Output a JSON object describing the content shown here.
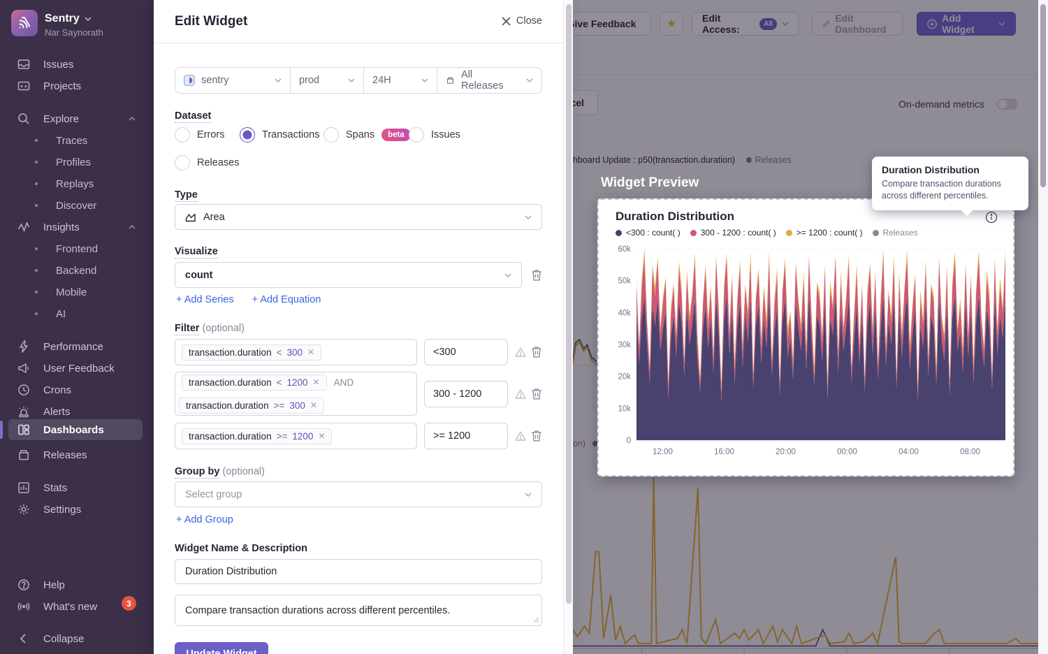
{
  "colors": {
    "accent": "#6c5fc7",
    "sidebar_bg": "#3b3048",
    "series_navy": "#49426f",
    "series_pink": "#cc5874",
    "series_gold": "#e3a83c",
    "link_blue": "#3668d8",
    "badge_red": "#e8543f"
  },
  "sidebar": {
    "org": "Sentry",
    "user": "Nar Saynorath",
    "nav": {
      "issues": "Issues",
      "projects": "Projects",
      "explore": "Explore",
      "traces": "Traces",
      "profiles": "Profiles",
      "replays": "Replays",
      "discover": "Discover",
      "insights": "Insights",
      "frontend": "Frontend",
      "backend": "Backend",
      "mobile": "Mobile",
      "ai": "AI",
      "performance": "Performance",
      "user_feedback": "User Feedback",
      "crons": "Crons",
      "alerts": "Alerts",
      "dashboards": "Dashboards",
      "releases": "Releases",
      "stats": "Stats",
      "settings": "Settings",
      "help": "Help",
      "whats_new": "What's new",
      "collapse": "Collapse"
    },
    "whats_new_badge": "3"
  },
  "header": {
    "give_feedback": "Give Feedback",
    "star_icon": "star",
    "edit_access_label": "Edit Access:",
    "edit_access_value": "All",
    "edit_dashboard": "Edit Dashboard",
    "add_widget": "Add Widget",
    "cancel": "Cancel",
    "on_demand": "On-demand metrics"
  },
  "background": {
    "legend_fragment": "hboard Update : p50(transaction.duration)",
    "legend_releases": "Releases",
    "fragment2": "on)"
  },
  "modal": {
    "title": "Edit Widget",
    "close": "Close",
    "filter_bar": {
      "project": "sentry",
      "environment": "prod",
      "period": "24H",
      "releases": "All Releases"
    },
    "dataset_label": "Dataset",
    "datasets": [
      "Errors",
      "Transactions",
      "Spans",
      "Issues",
      "Releases"
    ],
    "beta": "beta",
    "type_label": "Type",
    "type_value": "Area",
    "visualize_label": "Visualize",
    "visualize_value": "count",
    "add_series": "+ Add Series",
    "add_equation": "+ Add Equation",
    "filter_label": "Filter",
    "optional": "(optional)",
    "and_label": "AND",
    "filters": [
      {
        "chips": [
          {
            "key": "transaction.duration",
            "op": "<",
            "value": "300"
          }
        ],
        "alias": "<300"
      },
      {
        "chips": [
          {
            "key": "transaction.duration",
            "op": "<",
            "value": "1200"
          },
          {
            "key": "transaction.duration",
            "op": ">=",
            "value": "300"
          }
        ],
        "alias": "300 - 1200"
      },
      {
        "chips": [
          {
            "key": "transaction.duration",
            "op": ">=",
            "value": "1200"
          }
        ],
        "alias": ">= 1200"
      }
    ],
    "group_label": "Group by",
    "group_placeholder": "Select group",
    "add_group": "+ Add Group",
    "name_label": "Widget Name & Description",
    "name_value": "Duration Distribution",
    "description_value": "Compare transaction durations across different percentiles.",
    "update_button": "Update Widget"
  },
  "preview": {
    "heading": "Widget Preview",
    "title": "Duration Distribution",
    "legend": [
      {
        "label": "<300 : count( )",
        "color": "#49426f"
      },
      {
        "label": "300 - 1200 : count( )",
        "color": "#cc5874"
      },
      {
        "label": ">= 1200 : count( )",
        "color": "#e3a83c"
      },
      {
        "label": "Releases",
        "color": "#8d8595"
      }
    ],
    "tooltip": {
      "title": "Duration Distribution",
      "body": "Compare transaction durations across different percentiles."
    }
  },
  "chart_data": {
    "type": "area",
    "stacked": true,
    "title": "Duration Distribution",
    "unit": "thousands",
    "ylim": [
      0,
      60
    ],
    "y_ticks": [
      "0",
      "10k",
      "20k",
      "30k",
      "40k",
      "50k",
      "60k"
    ],
    "x_ticks": [
      "12:00",
      "16:00",
      "20:00",
      "00:00",
      "04:00",
      "08:00"
    ],
    "x_tick_start_frac": 0.071,
    "x_tick_step_frac": 0.1667,
    "series": [
      {
        "name": "<300 : count()",
        "color": "#49426f",
        "values": [
          40,
          24,
          38,
          45,
          30,
          18,
          42,
          36,
          44,
          28,
          35,
          40,
          13,
          32,
          39,
          26,
          43,
          37,
          20,
          41,
          30,
          36,
          44,
          25,
          15,
          34,
          42,
          29,
          38,
          21,
          44,
          33,
          12,
          37,
          45,
          27,
          40,
          18,
          35,
          43,
          23,
          39,
          31,
          44,
          16,
          36,
          42,
          24,
          38,
          29,
          45,
          20,
          34,
          41,
          14,
          37,
          44,
          26,
          32,
          19,
          43,
          35,
          28,
          40,
          22,
          45,
          30,
          17,
          39,
          36,
          25,
          43,
          13,
          38,
          33,
          45,
          21,
          40,
          28,
          35,
          44,
          18,
          31,
          42,
          24,
          39,
          15,
          36,
          43,
          27,
          41,
          19,
          34,
          45,
          23,
          37,
          30,
          44,
          16,
          40,
          26,
          38,
          45,
          22,
          33,
          41,
          12,
          36,
          29,
          43,
          20,
          39,
          35,
          17,
          44,
          31,
          25,
          42,
          14,
          38,
          45,
          28,
          34,
          21,
          43,
          26,
          40,
          18,
          37,
          45,
          30,
          23,
          41,
          35,
          16,
          44,
          27,
          39,
          32,
          45
        ]
      },
      {
        "name": "300 - 1200 : count()",
        "color": "#cc5874",
        "values": [
          8,
          5,
          10,
          12,
          6,
          4,
          11,
          9,
          12,
          5,
          8,
          10,
          3,
          7,
          9,
          6,
          11,
          8,
          4,
          10,
          7,
          9,
          12,
          5,
          3,
          8,
          11,
          6,
          9,
          4,
          12,
          7,
          3,
          9,
          12,
          6,
          10,
          4,
          8,
          11,
          5,
          9,
          7,
          12,
          3,
          8,
          10,
          5,
          9,
          6,
          12,
          4,
          8,
          10,
          3,
          9,
          11,
          6,
          7,
          4,
          11,
          8,
          6,
          10,
          5,
          12,
          7,
          3,
          9,
          8,
          6,
          11,
          3,
          9,
          8,
          12,
          5,
          10,
          6,
          8,
          12,
          4,
          7,
          10,
          5,
          9,
          3,
          8,
          11,
          6,
          10,
          4,
          8,
          12,
          5,
          9,
          7,
          11,
          3,
          10,
          6,
          9,
          12,
          5,
          8,
          10,
          3,
          8,
          7,
          11,
          4,
          9,
          8,
          3,
          12,
          7,
          6,
          10,
          3,
          9,
          12,
          6,
          8,
          5,
          11,
          6,
          10,
          4,
          9,
          12,
          7,
          5,
          10,
          8,
          3,
          12,
          6,
          9,
          8,
          12
        ]
      },
      {
        "name": ">= 1200 : count()",
        "color": "#e3a83c",
        "values": [
          2,
          1,
          2.5,
          3,
          1.5,
          1,
          2,
          3,
          1.5,
          2.5,
          2,
          1,
          2.5,
          3,
          1.5,
          1,
          2,
          3,
          1.5,
          2.5,
          2,
          1,
          2.5,
          3,
          1.5,
          1,
          2,
          3,
          1.5,
          2.5,
          2,
          1,
          2.5,
          3,
          1.5,
          1,
          2,
          3,
          1.5,
          2.5,
          2,
          1,
          2.5,
          3,
          1.5,
          1,
          2,
          3,
          1.5,
          2.5,
          2,
          1,
          2.5,
          3,
          1.5,
          1,
          2,
          3,
          1.5,
          2.5,
          2,
          1,
          2.5,
          3,
          1.5,
          1,
          2,
          3,
          1.5,
          2.5,
          2,
          1,
          2.5,
          3,
          1.5,
          1,
          2,
          3,
          1.5,
          2.5,
          2,
          1,
          2.5,
          3,
          1.5,
          1,
          2,
          3,
          1.5,
          2.5,
          2,
          1,
          2.5,
          3,
          1.5,
          1,
          2,
          3,
          1.5,
          2.5,
          2,
          1,
          2.5,
          3,
          1.5,
          1,
          2,
          3,
          1.5,
          2.5,
          2,
          1,
          2.5,
          3,
          1.5,
          1,
          2,
          3,
          1.5,
          2.5,
          2,
          1,
          2.5,
          3,
          1.5,
          1,
          2,
          3,
          1.5,
          2.5,
          2,
          1,
          2.5,
          3,
          1.5,
          1,
          2,
          3,
          1.5,
          2.5
        ]
      }
    ]
  },
  "bg_chart": {
    "gold_color": "#e0af30",
    "navy_color": "#4a4370",
    "gold_peaks": [
      [
        0,
        0.07
      ],
      [
        0.02,
        0.1
      ],
      [
        0.03,
        0.06
      ],
      [
        0.045,
        0.12
      ],
      [
        0.055,
        0.08
      ],
      [
        0.068,
        0.55
      ],
      [
        0.075,
        0.55
      ],
      [
        0.085,
        0.05
      ],
      [
        0.1,
        0.3
      ],
      [
        0.11,
        0.04
      ],
      [
        0.12,
        0.12
      ],
      [
        0.13,
        0.02
      ],
      [
        0.15,
        0.07
      ],
      [
        0.158,
        0.02
      ],
      [
        0.185,
        0.02
      ],
      [
        0.19,
        0.98
      ],
      [
        0.196,
        0.02
      ],
      [
        0.24,
        0.05
      ],
      [
        0.25,
        0.1
      ],
      [
        0.26,
        0.02
      ],
      [
        0.283,
        0.92
      ],
      [
        0.29,
        0.05
      ],
      [
        0.3,
        0.02
      ],
      [
        0.32,
        0.16
      ],
      [
        0.33,
        0.02
      ],
      [
        0.36,
        0.08
      ],
      [
        0.37,
        0.05
      ],
      [
        0.38,
        0.1
      ],
      [
        0.39,
        0.04
      ],
      [
        0.41,
        0.1
      ],
      [
        0.42,
        0.02
      ],
      [
        0.44,
        0.12
      ],
      [
        0.45,
        0.03
      ],
      [
        0.46,
        0.1
      ],
      [
        0.48,
        0.02
      ],
      [
        0.49,
        0.12
      ],
      [
        0.5,
        0.02
      ],
      [
        0.55,
        0.07
      ],
      [
        0.56,
        0.02
      ],
      [
        0.59,
        0.03
      ],
      [
        0.6,
        0.08
      ],
      [
        0.61,
        0.02
      ],
      [
        0.63,
        0.03
      ],
      [
        0.65,
        0.08
      ],
      [
        0.66,
        0.02
      ],
      [
        0.698,
        0.52
      ],
      [
        0.705,
        0.03
      ],
      [
        0.712,
        0.02
      ],
      [
        0.76,
        0.02
      ],
      [
        0.78,
        0.08
      ],
      [
        0.79,
        0.1
      ],
      [
        0.8,
        0.02
      ],
      [
        0.93,
        0.02
      ],
      [
        0.95,
        0.05
      ],
      [
        0.96,
        0.02
      ],
      [
        1,
        0.02
      ]
    ],
    "navy_peaks": [
      [
        0,
        0.006
      ],
      [
        0.53,
        0.006
      ],
      [
        0.545,
        0.1
      ],
      [
        0.56,
        0.006
      ],
      [
        1,
        0.006
      ]
    ],
    "fragment_gold": [
      [
        0,
        0.2
      ],
      [
        0.12,
        0.78
      ],
      [
        0.28,
        0.92
      ],
      [
        0.45,
        0.6
      ],
      [
        0.6,
        0.72
      ],
      [
        0.78,
        0.3
      ],
      [
        1,
        0.12
      ]
    ],
    "fragment_navy": [
      [
        0,
        0.3
      ],
      [
        0.12,
        0.9
      ],
      [
        0.28,
        1.0
      ],
      [
        0.45,
        0.68
      ],
      [
        0.6,
        0.82
      ],
      [
        0.78,
        0.4
      ],
      [
        1,
        0.25
      ]
    ]
  }
}
